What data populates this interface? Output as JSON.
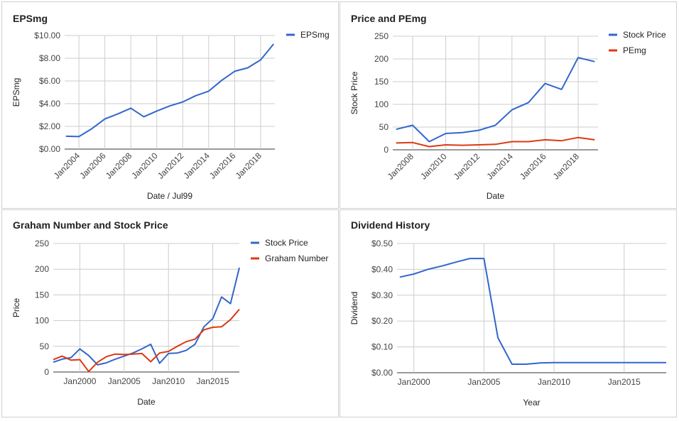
{
  "colors": {
    "blue": "#3366cc",
    "red": "#dc3912",
    "grid": "#cccccc",
    "axis": "#333333"
  },
  "chart_data": [
    {
      "id": "eps",
      "type": "line",
      "title": "EPSmg",
      "xlabel": "Date / Jul99",
      "ylabel": "EPSmg",
      "ylim": [
        0,
        10
      ],
      "yticks": [
        "$0.00",
        "$2.00",
        "$4.00",
        "$6.00",
        "$8.00",
        "$10.00"
      ],
      "xticks": [
        "Jan2004",
        "Jan2006",
        "Jan2008",
        "Jan2010",
        "Jan2012",
        "Jan2014",
        "Jan2016",
        "Jan2018"
      ],
      "grid": true,
      "legend": "right",
      "series": [
        {
          "name": "EPSmg",
          "color": "#3366cc",
          "x": [
            2003.0,
            2004.0,
            2005.0,
            2006.0,
            2007.0,
            2008.0,
            2009.0,
            2010.0,
            2011.0,
            2012.0,
            2013.0,
            2014.0,
            2015.0,
            2016.0,
            2017.0,
            2018.0,
            2019.0
          ],
          "values": [
            1.13,
            1.1,
            1.8,
            2.65,
            3.1,
            3.6,
            2.85,
            3.35,
            3.8,
            4.15,
            4.7,
            5.1,
            6.05,
            6.85,
            7.15,
            7.85,
            9.25
          ]
        }
      ]
    },
    {
      "id": "price_pe",
      "type": "line",
      "title": "Price and PEmg",
      "xlabel": "Date",
      "ylabel": "Stock Price",
      "ylim": [
        0,
        250
      ],
      "yticks": [
        "0",
        "50",
        "100",
        "150",
        "200",
        "250"
      ],
      "xticks": [
        "Jan2008",
        "Jan2010",
        "Jan2012",
        "Jan2014",
        "Jan2016",
        "Jan2018"
      ],
      "grid": true,
      "legend": "right",
      "series": [
        {
          "name": "Stock Price",
          "color": "#3366cc",
          "x": [
            2007.0,
            2008.0,
            2009.0,
            2010.0,
            2011.0,
            2012.0,
            2013.0,
            2014.0,
            2015.0,
            2016.0,
            2017.0,
            2018.0,
            2019.0
          ],
          "values": [
            45,
            54,
            18,
            36,
            38,
            43,
            54,
            88,
            104,
            146,
            133,
            203,
            194
          ]
        },
        {
          "name": "PEmg",
          "color": "#dc3912",
          "x": [
            2007.0,
            2008.0,
            2009.0,
            2010.0,
            2011.0,
            2012.0,
            2013.0,
            2014.0,
            2015.0,
            2016.0,
            2017.0,
            2018.0,
            2019.0
          ],
          "values": [
            15,
            16,
            7,
            11,
            10,
            11,
            12,
            18,
            18,
            22,
            20,
            27,
            22
          ]
        }
      ]
    },
    {
      "id": "graham",
      "type": "line",
      "title": "Graham Number and Stock Price",
      "xlabel": "Date",
      "ylabel": "Price",
      "ylim": [
        0,
        250
      ],
      "yticks": [
        "0",
        "50",
        "100",
        "150",
        "200",
        "250"
      ],
      "xticks": [
        "Jan2000",
        "Jan2005",
        "Jan2010",
        "Jan2015"
      ],
      "grid": true,
      "legend": "right",
      "series": [
        {
          "name": "Stock Price",
          "color": "#3366cc",
          "x": [
            1997.0,
            1998.0,
            1999.0,
            2000.0,
            2001.0,
            2002.0,
            2003.0,
            2004.0,
            2005.0,
            2006.0,
            2007.0,
            2008.0,
            2009.0,
            2010.0,
            2011.0,
            2012.0,
            2013.0,
            2014.0,
            2015.0,
            2016.0,
            2017.0,
            2018.0
          ],
          "values": [
            19,
            25,
            28,
            45,
            32,
            14,
            18,
            25,
            31,
            37,
            45,
            54,
            17,
            36,
            37,
            42,
            54,
            88,
            104,
            146,
            133,
            203
          ]
        },
        {
          "name": "Graham Number",
          "color": "#dc3912",
          "x": [
            1997.0,
            1998.0,
            1999.0,
            2000.0,
            2001.0,
            2002.0,
            2003.0,
            2004.0,
            2005.0,
            2006.0,
            2007.0,
            2008.0,
            2009.0,
            2010.0,
            2011.0,
            2012.0,
            2013.0,
            2014.0,
            2015.0,
            2016.0,
            2017.0,
            2018.0
          ],
          "values": [
            24,
            31,
            23,
            24,
            1,
            19,
            30,
            35,
            34,
            35,
            36,
            20,
            37,
            40,
            50,
            59,
            64,
            82,
            87,
            88,
            102,
            122
          ]
        }
      ]
    },
    {
      "id": "dividend",
      "type": "line",
      "title": "Dividend History",
      "xlabel": "Year",
      "ylabel": "Dividend",
      "ylim": [
        0,
        0.5
      ],
      "yticks": [
        "$0.00",
        "$0.10",
        "$0.20",
        "$0.30",
        "$0.40",
        "$0.50"
      ],
      "xticks": [
        "Jan2000",
        "Jan2005",
        "Jan2010",
        "Jan2015"
      ],
      "grid": true,
      "legend": "none",
      "series": [
        {
          "name": "",
          "color": "#3366cc",
          "x": [
            1999.0,
            2000.0,
            2001.0,
            2002.0,
            2003.0,
            2004.0,
            2005.0,
            2006.0,
            2007.0,
            2008.0,
            2009.0,
            2010.0,
            2011.0,
            2012.0,
            2013.0,
            2014.0,
            2015.0,
            2016.0,
            2017.0,
            2018.0
          ],
          "values": [
            0.37,
            0.382,
            0.4,
            0.413,
            0.428,
            0.442,
            0.442,
            0.135,
            0.033,
            0.033,
            0.038,
            0.039,
            0.039,
            0.039,
            0.039,
            0.039,
            0.039,
            0.039,
            0.039,
            0.039
          ]
        }
      ]
    }
  ]
}
